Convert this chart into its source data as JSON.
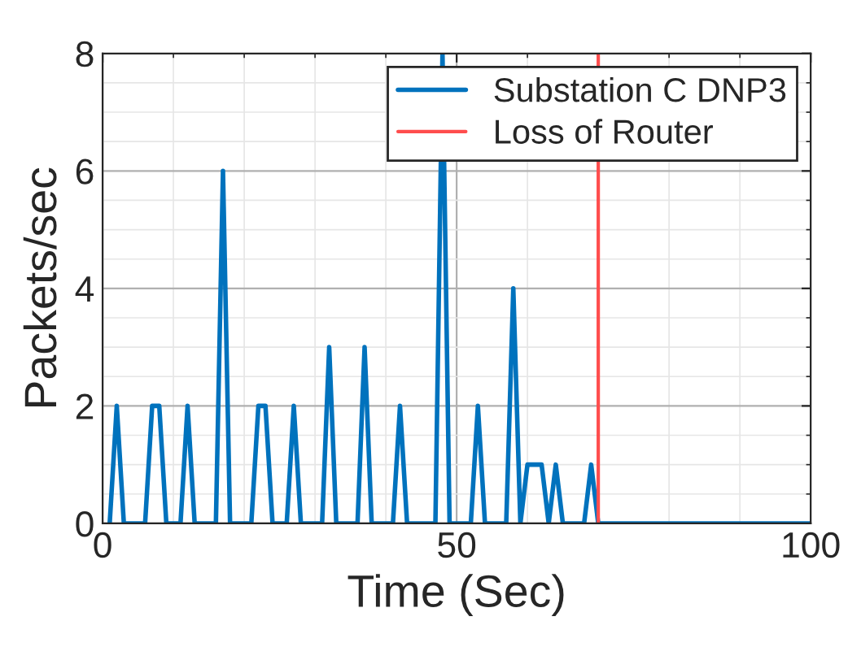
{
  "chart_data": {
    "type": "line",
    "xlabel": "Time (Sec)",
    "ylabel": "Packets/sec",
    "series": [
      {
        "name": "Substation C DNP3",
        "color": "#0072bd",
        "x": [
          1,
          2,
          3,
          6,
          7,
          8,
          9,
          11,
          12,
          13,
          16,
          17,
          18,
          21,
          22,
          23,
          24,
          26,
          27,
          28,
          31,
          32,
          33,
          36,
          37,
          38,
          41,
          42,
          43,
          47,
          48,
          49,
          52,
          53,
          54,
          57,
          58,
          59,
          60,
          62,
          63,
          64,
          65,
          68,
          69,
          70,
          100
        ],
        "values": [
          0,
          2,
          0,
          0,
          2,
          2,
          0,
          0,
          2,
          0,
          0,
          6,
          0,
          0,
          2,
          2,
          0,
          0,
          2,
          0,
          0,
          3,
          0,
          0,
          3,
          0,
          0,
          2,
          0,
          0,
          8,
          0,
          0,
          2,
          0,
          0,
          4,
          0,
          1,
          1,
          0,
          1,
          0,
          0,
          1,
          0,
          0
        ]
      }
    ],
    "ref_lines": [
      {
        "axis": "x",
        "value": 70,
        "label": "Loss of Router",
        "color": "#ff4d4d"
      }
    ],
    "xlim": [
      0,
      100
    ],
    "xticks": [
      0,
      50,
      100
    ],
    "ylim": [
      0,
      8
    ],
    "yticks": [
      0,
      2,
      4,
      6,
      8
    ],
    "grid": true,
    "legend": "top right",
    "line_style": "solid",
    "marker": "none"
  }
}
